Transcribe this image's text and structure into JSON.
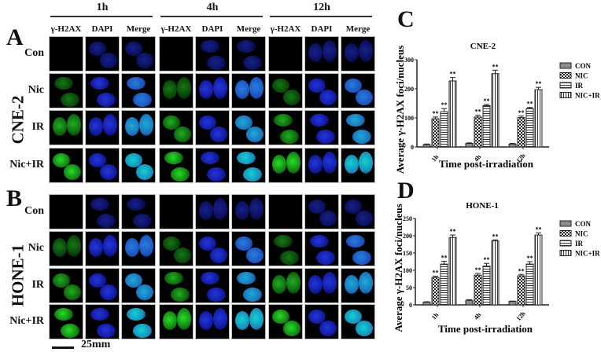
{
  "panels": {
    "A": {
      "letter": "A",
      "cell_line": "CNE-2"
    },
    "B": {
      "letter": "B",
      "cell_line": "HONE-1"
    },
    "C": {
      "letter": "C"
    },
    "D": {
      "letter": "D"
    }
  },
  "timepoints": [
    "1h",
    "4h",
    "12h"
  ],
  "channels": [
    "γ-H2AX",
    "DAPI",
    "Merge"
  ],
  "treatments": [
    "Con",
    "Nic",
    "IR",
    "Nic+IR"
  ],
  "scale_bar": "25mm",
  "colors": {
    "green": "#1fd21f",
    "blue": "#1a2fe0",
    "cyan": "#33d6d0"
  },
  "chart_data": [
    {
      "type": "bar",
      "title": "CNE-2",
      "xlabel": "Time post-irradiation",
      "ylabel": "Average γ-H2AX foci/nucleus",
      "categories": [
        "1h",
        "4h",
        "12h"
      ],
      "ylim": [
        0,
        300
      ],
      "yticks": [
        0,
        100,
        200,
        300
      ],
      "grid": false,
      "legend_position": "right",
      "series": [
        {
          "name": "CON",
          "values": [
            8,
            12,
            10
          ],
          "pattern": "gray-fill"
        },
        {
          "name": "NIC",
          "values": [
            97,
            103,
            101
          ],
          "pattern": "checker",
          "annotation": [
            "**",
            "**",
            "**"
          ]
        },
        {
          "name": "IR",
          "values": [
            121,
            142,
            132
          ],
          "pattern": "horizontal-lines",
          "annotation": [
            "**",
            "**",
            "**"
          ]
        },
        {
          "name": "NIC+IR",
          "values": [
            227,
            252,
            197
          ],
          "pattern": "vertical-lines",
          "annotation": [
            "**",
            "**",
            "**"
          ]
        }
      ],
      "errors": [
        [
          2,
          2,
          2
        ],
        [
          6,
          6,
          5
        ],
        [
          11,
          4,
          4
        ],
        [
          12,
          12,
          8
        ]
      ]
    },
    {
      "type": "bar",
      "title": "HONE-1",
      "xlabel": "Time post-irradiation",
      "ylabel": "Average γ-H2AX foci/nucleus",
      "categories": [
        "1h",
        "4h",
        "12h"
      ],
      "ylim": [
        0,
        250
      ],
      "yticks": [
        0,
        50,
        100,
        150,
        200,
        250
      ],
      "grid": false,
      "legend_position": "right",
      "series": [
        {
          "name": "CON",
          "values": [
            8,
            13,
            10
          ],
          "pattern": "gray-fill"
        },
        {
          "name": "NIC",
          "values": [
            79,
            86,
            84
          ],
          "pattern": "checker",
          "annotation": [
            "**",
            "**",
            "**"
          ]
        },
        {
          "name": "IR",
          "values": [
            118,
            112,
            118
          ],
          "pattern": "horizontal-lines",
          "annotation": [
            "**",
            "**",
            "**"
          ]
        },
        {
          "name": "NIC+IR",
          "values": [
            195,
            185,
            202
          ],
          "pattern": "vertical-lines",
          "annotation": [
            "**",
            "**",
            "**"
          ]
        }
      ],
      "errors": [
        [
          1,
          2,
          1
        ],
        [
          4,
          5,
          4
        ],
        [
          8,
          8,
          7
        ],
        [
          7,
          3,
          6
        ]
      ]
    }
  ]
}
